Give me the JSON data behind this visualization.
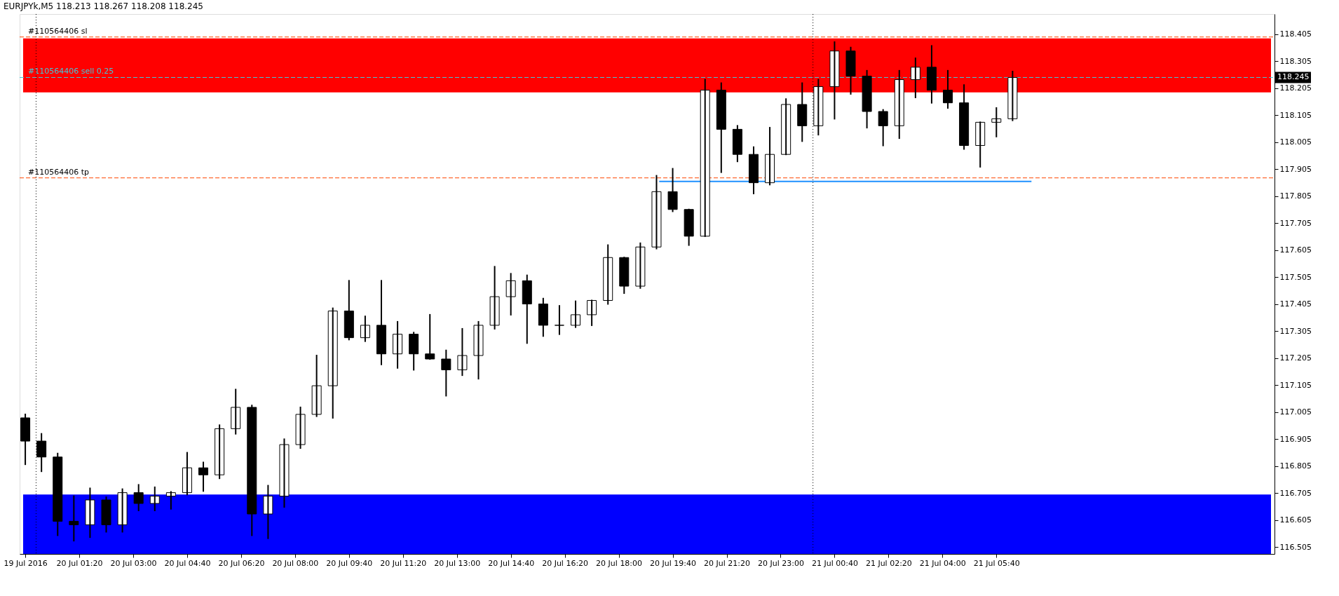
{
  "chart_data": {
    "type": "candlestick",
    "title": "EURJPYk,M5  118.213 118.267 118.208 118.245",
    "x": [
      "2016-07-19T23:40",
      "2016-07-20T00:10",
      "2016-07-20T00:40",
      "2016-07-20T01:10",
      "2016-07-20T01:40",
      "2016-07-20T02:10",
      "2016-07-20T02:40",
      "2016-07-20T03:10",
      "2016-07-20T03:40",
      "2016-07-20T04:10",
      "2016-07-20T04:40",
      "2016-07-20T05:10",
      "2016-07-20T05:40",
      "2016-07-20T06:10",
      "2016-07-20T06:40",
      "2016-07-20T07:10",
      "2016-07-20T07:40",
      "2016-07-20T08:10",
      "2016-07-20T08:40",
      "2016-07-20T09:10",
      "2016-07-20T09:40",
      "2016-07-20T10:10",
      "2016-07-20T10:40",
      "2016-07-20T11:10",
      "2016-07-20T11:40",
      "2016-07-20T12:10",
      "2016-07-20T12:40",
      "2016-07-20T13:10",
      "2016-07-20T13:40",
      "2016-07-20T14:10",
      "2016-07-20T14:40",
      "2016-07-20T15:10",
      "2016-07-20T15:40",
      "2016-07-20T16:10",
      "2016-07-20T16:40",
      "2016-07-20T17:10",
      "2016-07-20T17:40",
      "2016-07-20T18:10",
      "2016-07-20T18:40",
      "2016-07-20T19:10",
      "2016-07-20T19:40",
      "2016-07-20T20:10",
      "2016-07-20T20:40",
      "2016-07-20T21:10",
      "2016-07-20T21:40",
      "2016-07-20T22:10",
      "2016-07-20T22:40",
      "2016-07-20T23:10",
      "2016-07-20T23:40",
      "2016-07-21T00:10",
      "2016-07-21T00:40",
      "2016-07-21T01:10",
      "2016-07-21T01:40",
      "2016-07-21T02:10",
      "2016-07-21T02:40",
      "2016-07-21T03:10",
      "2016-07-21T03:40",
      "2016-07-21T04:10",
      "2016-07-21T04:40",
      "2016-07-21T05:10",
      "2016-07-21T05:40",
      "2016-07-21T06:10"
    ],
    "ohlc": [
      [
        116.984,
        116.997,
        116.812,
        116.898
      ],
      [
        116.898,
        116.925,
        116.786,
        116.839
      ],
      [
        116.839,
        116.852,
        116.549,
        116.601
      ],
      [
        116.601,
        116.694,
        116.529,
        116.588
      ],
      [
        116.588,
        116.723,
        116.542,
        116.68
      ],
      [
        116.68,
        116.69,
        116.562,
        116.588
      ],
      [
        116.588,
        116.72,
        116.562,
        116.707
      ],
      [
        116.707,
        116.736,
        116.641,
        116.667
      ],
      [
        116.667,
        116.727,
        116.641,
        116.694
      ],
      [
        116.694,
        116.71,
        116.647,
        116.707
      ],
      [
        116.707,
        116.855,
        116.7,
        116.799
      ],
      [
        116.799,
        116.819,
        116.713,
        116.773
      ],
      [
        116.773,
        116.957,
        116.76,
        116.944
      ],
      [
        116.944,
        117.089,
        116.925,
        117.023
      ],
      [
        117.023,
        117.03,
        116.549,
        116.628
      ],
      [
        116.628,
        116.733,
        116.538,
        116.694
      ],
      [
        116.694,
        116.905,
        116.654,
        116.885
      ],
      [
        116.885,
        117.023,
        116.872,
        116.997
      ],
      [
        116.997,
        117.215,
        116.99,
        117.103
      ],
      [
        117.103,
        117.39,
        116.984,
        117.38
      ],
      [
        117.38,
        117.492,
        117.274,
        117.281
      ],
      [
        117.281,
        117.36,
        117.268,
        117.327
      ],
      [
        117.327,
        117.492,
        117.182,
        117.221
      ],
      [
        117.221,
        117.34,
        117.169,
        117.294
      ],
      [
        117.294,
        117.3,
        117.162,
        117.221
      ],
      [
        117.221,
        117.366,
        117.202,
        117.202
      ],
      [
        117.202,
        117.234,
        117.066,
        117.162
      ],
      [
        117.162,
        117.314,
        117.142,
        117.215
      ],
      [
        117.215,
        117.34,
        117.129,
        117.327
      ],
      [
        117.327,
        117.544,
        117.314,
        117.433
      ],
      [
        117.433,
        117.518,
        117.366,
        117.492
      ],
      [
        117.492,
        117.512,
        117.261,
        117.406
      ],
      [
        117.406,
        117.426,
        117.287,
        117.327
      ],
      [
        117.327,
        117.399,
        117.294,
        117.327
      ],
      [
        117.327,
        117.416,
        117.32,
        117.366
      ],
      [
        117.366,
        117.419,
        117.327,
        117.419
      ],
      [
        117.419,
        117.624,
        117.406,
        117.578
      ],
      [
        117.578,
        117.578,
        117.446,
        117.472
      ],
      [
        117.472,
        117.631,
        117.465,
        117.617
      ],
      [
        117.617,
        117.881,
        117.611,
        117.822
      ],
      [
        117.822,
        117.907,
        117.749,
        117.756
      ],
      [
        117.756,
        117.756,
        117.624,
        117.657
      ],
      [
        117.657,
        118.237,
        117.657,
        118.198
      ],
      [
        118.198,
        118.224,
        117.894,
        118.053
      ],
      [
        118.053,
        118.066,
        117.934,
        117.96
      ],
      [
        117.96,
        117.987,
        117.815,
        117.855
      ],
      [
        117.855,
        118.059,
        117.848,
        117.96
      ],
      [
        117.96,
        118.165,
        117.96,
        118.145
      ],
      [
        118.145,
        118.224,
        118.009,
        118.066
      ],
      [
        118.066,
        118.237,
        118.033,
        118.211
      ],
      [
        118.211,
        118.376,
        118.092,
        118.343
      ],
      [
        118.343,
        118.356,
        118.184,
        118.25
      ],
      [
        118.25,
        118.27,
        118.059,
        118.119
      ],
      [
        118.119,
        118.125,
        117.993,
        118.066
      ],
      [
        118.066,
        118.27,
        118.02,
        118.237
      ],
      [
        118.237,
        118.316,
        118.171,
        118.283
      ],
      [
        118.283,
        118.362,
        118.151,
        118.198
      ],
      [
        118.198,
        118.27,
        118.132,
        118.151
      ],
      [
        118.151,
        118.217,
        117.98,
        117.993
      ],
      [
        117.993,
        118.079,
        117.914,
        118.079
      ],
      [
        118.079,
        118.132,
        118.026,
        118.092
      ],
      [
        118.092,
        118.267,
        118.086,
        118.245
      ]
    ],
    "series": [
      {
        "type": "line",
        "color": "#1e90ff",
        "x": [
          "2016-07-20T19:15",
          "2016-07-21T06:45"
        ],
        "values": [
          117.86,
          117.86
        ]
      }
    ],
    "xlim": [
      "2016-07-19T23:36",
      "2016-07-21T14:09"
    ],
    "xticks": [
      {
        "value": "2016-07-19T23:40",
        "label": "19 Jul 2016"
      },
      {
        "value": "2016-07-20T01:20",
        "label": "20 Jul 01:20"
      },
      {
        "value": "2016-07-20T03:00",
        "label": "20 Jul 03:00"
      },
      {
        "value": "2016-07-20T04:40",
        "label": "20 Jul 04:40"
      },
      {
        "value": "2016-07-20T06:20",
        "label": "20 Jul 06:20"
      },
      {
        "value": "2016-07-20T08:00",
        "label": "20 Jul 08:00"
      },
      {
        "value": "2016-07-20T09:40",
        "label": "20 Jul 09:40"
      },
      {
        "value": "2016-07-20T11:20",
        "label": "20 Jul 11:20"
      },
      {
        "value": "2016-07-20T13:00",
        "label": "20 Jul 13:00"
      },
      {
        "value": "2016-07-20T14:40",
        "label": "20 Jul 14:40"
      },
      {
        "value": "2016-07-20T16:20",
        "label": "20 Jul 16:20"
      },
      {
        "value": "2016-07-20T18:00",
        "label": "20 Jul 18:00"
      },
      {
        "value": "2016-07-20T19:40",
        "label": "20 Jul 19:40"
      },
      {
        "value": "2016-07-20T21:20",
        "label": "20 Jul 21:20"
      },
      {
        "value": "2016-07-20T23:00",
        "label": "20 Jul 23:00"
      },
      {
        "value": "2016-07-21T00:40",
        "label": "21 Jul 00:40"
      },
      {
        "value": "2016-07-21T02:20",
        "label": "21 Jul 02:20"
      },
      {
        "value": "2016-07-21T04:00",
        "label": "21 Jul 04:00"
      },
      {
        "value": "2016-07-21T05:40",
        "label": "21 Jul 05:40"
      }
    ],
    "ylim": [
      116.48,
      118.48
    ],
    "yticks": [
      116.505,
      116.605,
      116.705,
      116.805,
      116.905,
      117.005,
      117.105,
      117.205,
      117.305,
      117.405,
      117.505,
      117.605,
      117.705,
      117.805,
      117.905,
      118.005,
      118.105,
      118.205,
      118.305,
      118.405
    ],
    "bands": [
      {
        "axis": "y",
        "from": 118.19,
        "to": 118.39,
        "color": "#ff0000"
      },
      {
        "axis": "y",
        "from": 116.48,
        "to": 116.7,
        "color": "#0000ff"
      }
    ],
    "ref_lines": [
      {
        "axis": "y",
        "value": 118.395,
        "label": "#110564406 sl",
        "color": "#ff4500",
        "line_style": "dashed"
      },
      {
        "axis": "y",
        "value": 118.245,
        "label": "#110564406 sell 0.25",
        "color": "#40c8d8",
        "line_style": "dashed"
      },
      {
        "axis": "y",
        "value": 117.873,
        "label": "#110564406 tp",
        "color": "#ff4500",
        "line_style": "dashed"
      },
      {
        "axis": "x",
        "value": "2016-07-20T00:00",
        "color": "#000000",
        "line_style": "dotted"
      },
      {
        "axis": "x",
        "value": "2016-07-21T00:00",
        "color": "#000000",
        "line_style": "dotted"
      }
    ],
    "annotations": [
      "118.245"
    ],
    "grid": false
  }
}
